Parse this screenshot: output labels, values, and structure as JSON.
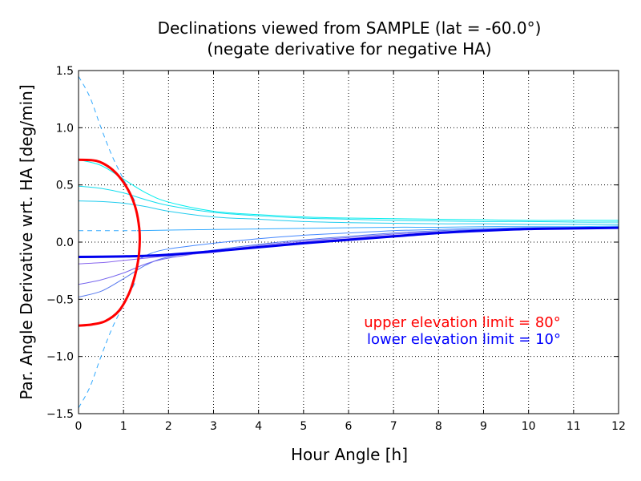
{
  "chart_data": {
    "type": "line",
    "title": "Declinations viewed from SAMPLE (lat = -60.0°)",
    "subtitle": "(negate derivative for negative HA)",
    "xlabel": "Hour Angle [h]",
    "ylabel": "Par. Angle Derivative wrt. HA [deg/min]",
    "xlim": [
      0,
      12
    ],
    "ylim": [
      -1.5,
      1.5
    ],
    "xticks": [
      "0",
      "1",
      "2",
      "3",
      "4",
      "5",
      "6",
      "7",
      "8",
      "9",
      "10",
      "11",
      "12"
    ],
    "yticks": [
      "1.5",
      "1.0",
      "0.5",
      "0.0",
      "−0.5",
      "−1.0",
      "−1.5"
    ],
    "grid": true,
    "annotations": [
      {
        "text": "upper elevation limit = 80°",
        "color": "#ff0000"
      },
      {
        "text": "lower elevation limit = 10°",
        "color": "#0000ff"
      }
    ],
    "dashed_curves": [
      {
        "color": "#33aaff",
        "points": [
          [
            0,
            1.45
          ],
          [
            0.25,
            1.27
          ],
          [
            0.5,
            1.0
          ],
          [
            0.75,
            0.75
          ],
          [
            1.0,
            0.55
          ],
          [
            1.25,
            0.36
          ]
        ]
      },
      {
        "color": "#33aaff",
        "points": [
          [
            0,
            -1.45
          ],
          [
            0.25,
            -1.27
          ],
          [
            0.5,
            -1.0
          ],
          [
            0.75,
            -0.75
          ],
          [
            1.0,
            -0.55
          ],
          [
            1.25,
            -0.36
          ]
        ]
      },
      {
        "color": "#33aaff",
        "points": [
          [
            0,
            0.1
          ],
          [
            1.3,
            0.1
          ]
        ]
      }
    ],
    "series": [
      {
        "color": "#00eeee",
        "width": 1,
        "points": [
          [
            0,
            0.72
          ],
          [
            0.5,
            0.67
          ],
          [
            1.0,
            0.55
          ],
          [
            1.5,
            0.43
          ],
          [
            2,
            0.35
          ],
          [
            3,
            0.27
          ],
          [
            4,
            0.24
          ],
          [
            5,
            0.22
          ],
          [
            6,
            0.21
          ],
          [
            7,
            0.205
          ],
          [
            8,
            0.2
          ],
          [
            9,
            0.195
          ],
          [
            10,
            0.19
          ],
          [
            11,
            0.19
          ],
          [
            12,
            0.19
          ]
        ]
      },
      {
        "color": "#11ddee",
        "width": 1,
        "points": [
          [
            0,
            0.49
          ],
          [
            0.5,
            0.47
          ],
          [
            1.0,
            0.43
          ],
          [
            1.5,
            0.37
          ],
          [
            2,
            0.32
          ],
          [
            3,
            0.26
          ],
          [
            4,
            0.23
          ],
          [
            5,
            0.21
          ],
          [
            6,
            0.2
          ],
          [
            7,
            0.19
          ],
          [
            8,
            0.185
          ],
          [
            9,
            0.18
          ],
          [
            10,
            0.18
          ],
          [
            11,
            0.175
          ],
          [
            12,
            0.175
          ]
        ]
      },
      {
        "color": "#22ccee",
        "width": 1,
        "points": [
          [
            0,
            0.36
          ],
          [
            0.5,
            0.355
          ],
          [
            1.0,
            0.34
          ],
          [
            1.5,
            0.31
          ],
          [
            2,
            0.27
          ],
          [
            3,
            0.22
          ],
          [
            4,
            0.2
          ],
          [
            5,
            0.18
          ],
          [
            6,
            0.17
          ],
          [
            7,
            0.165
          ],
          [
            8,
            0.16
          ],
          [
            9,
            0.16
          ],
          [
            10,
            0.155
          ],
          [
            11,
            0.155
          ],
          [
            12,
            0.155
          ]
        ]
      },
      {
        "color": "#33aaff",
        "width": 1,
        "points": [
          [
            1.3,
            0.1
          ],
          [
            2,
            0.105
          ],
          [
            3,
            0.11
          ],
          [
            4,
            0.115
          ],
          [
            5,
            0.12
          ],
          [
            6,
            0.125
          ],
          [
            7,
            0.13
          ],
          [
            8,
            0.13
          ],
          [
            9,
            0.135
          ],
          [
            10,
            0.135
          ],
          [
            11,
            0.135
          ],
          [
            12,
            0.14
          ]
        ]
      },
      {
        "color": "#4488ff",
        "width": 1,
        "points": [
          [
            1.3,
            -0.16
          ],
          [
            1.6,
            -0.1
          ],
          [
            2,
            -0.06
          ],
          [
            3,
            -0.01
          ],
          [
            4,
            0.03
          ],
          [
            5,
            0.06
          ],
          [
            6,
            0.08
          ],
          [
            7,
            0.1
          ],
          [
            8,
            0.11
          ],
          [
            9,
            0.12
          ],
          [
            10,
            0.125
          ],
          [
            11,
            0.13
          ],
          [
            12,
            0.13
          ]
        ]
      },
      {
        "color": "#5577ee",
        "width": 1,
        "points": [
          [
            0,
            -0.48
          ],
          [
            0.5,
            -0.43
          ],
          [
            1.0,
            -0.32
          ],
          [
            1.5,
            -0.2
          ],
          [
            2,
            -0.13
          ],
          [
            3,
            -0.07
          ],
          [
            4,
            -0.02
          ],
          [
            5,
            0.02
          ],
          [
            6,
            0.05
          ],
          [
            7,
            0.08
          ],
          [
            8,
            0.1
          ],
          [
            9,
            0.11
          ],
          [
            10,
            0.12
          ],
          [
            11,
            0.125
          ],
          [
            12,
            0.13
          ]
        ]
      },
      {
        "color": "#7766ee",
        "width": 1,
        "points": [
          [
            0,
            -0.37
          ],
          [
            0.5,
            -0.33
          ],
          [
            1.0,
            -0.27
          ],
          [
            1.5,
            -0.19
          ],
          [
            2,
            -0.14
          ],
          [
            3,
            -0.08
          ],
          [
            4,
            -0.03
          ],
          [
            5,
            0.01
          ],
          [
            6,
            0.04
          ],
          [
            7,
            0.07
          ],
          [
            8,
            0.09
          ],
          [
            9,
            0.105
          ],
          [
            10,
            0.115
          ],
          [
            11,
            0.12
          ],
          [
            12,
            0.125
          ]
        ]
      },
      {
        "color": "#8866ee",
        "width": 1,
        "points": [
          [
            0,
            -0.19
          ],
          [
            0.5,
            -0.18
          ],
          [
            1.0,
            -0.16
          ],
          [
            1.5,
            -0.14
          ],
          [
            2,
            -0.12
          ],
          [
            3,
            -0.09
          ],
          [
            4,
            -0.04
          ],
          [
            5,
            0.0
          ],
          [
            6,
            0.03
          ],
          [
            7,
            0.06
          ],
          [
            8,
            0.085
          ],
          [
            9,
            0.1
          ],
          [
            10,
            0.11
          ],
          [
            11,
            0.12
          ],
          [
            12,
            0.125
          ]
        ]
      },
      {
        "color": "#0000ee",
        "width": 3,
        "points": [
          [
            0,
            -0.13
          ],
          [
            0.5,
            -0.128
          ],
          [
            1.0,
            -0.125
          ],
          [
            1.5,
            -0.12
          ],
          [
            2,
            -0.11
          ],
          [
            3,
            -0.08
          ],
          [
            4,
            -0.045
          ],
          [
            5,
            -0.01
          ],
          [
            6,
            0.02
          ],
          [
            7,
            0.05
          ],
          [
            8,
            0.08
          ],
          [
            9,
            0.1
          ],
          [
            10,
            0.115
          ],
          [
            11,
            0.12
          ],
          [
            12,
            0.125
          ]
        ]
      },
      {
        "color": "#ff0000",
        "width": 3,
        "points": [
          [
            0,
            0.72
          ],
          [
            0.4,
            0.71
          ],
          [
            0.7,
            0.65
          ],
          [
            0.95,
            0.55
          ],
          [
            1.15,
            0.42
          ],
          [
            1.28,
            0.28
          ],
          [
            1.35,
            0.12
          ],
          [
            1.36,
            0.0
          ],
          [
            1.33,
            -0.15
          ],
          [
            1.25,
            -0.3
          ],
          [
            1.12,
            -0.45
          ],
          [
            0.9,
            -0.6
          ],
          [
            0.6,
            -0.69
          ],
          [
            0.3,
            -0.72
          ],
          [
            0,
            -0.73
          ]
        ]
      }
    ]
  }
}
